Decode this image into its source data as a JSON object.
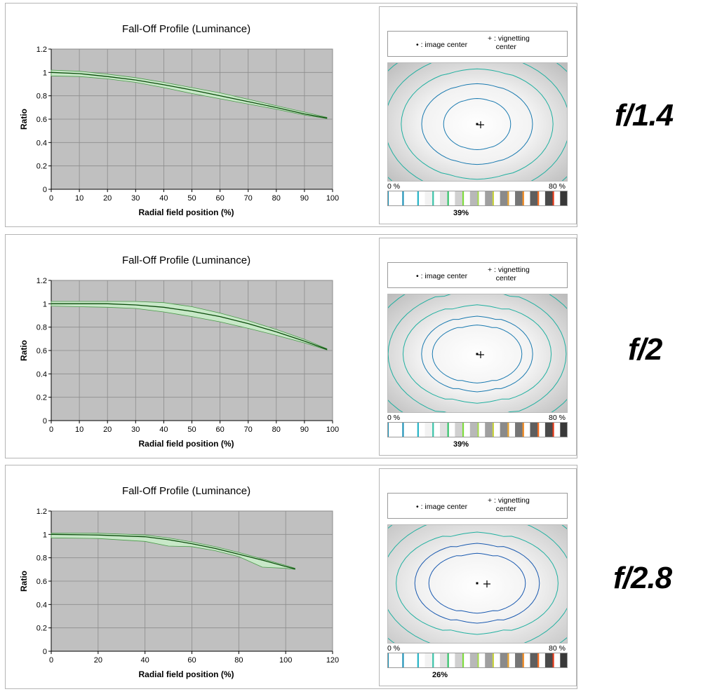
{
  "legend": {
    "image_center": "• : image center",
    "vignetting_line1": "+ : vignetting",
    "vignetting_line2": "center"
  },
  "scale": {
    "min_label": "0 %",
    "max_label": "80 %"
  },
  "scale_colors": [
    "#1a8fb5",
    "#ffffff",
    "#1a8fb5",
    "#ffffff",
    "#27b4c6",
    "#f2f2f2",
    "#3cc3a9",
    "#e0e0e0",
    "#36c26c",
    "#d0d0d0",
    "#7ddc3a",
    "#b8b8b8",
    "#a4d84d",
    "#a0a0a0",
    "#c9d43c",
    "#8a8a8a",
    "#e0a030",
    "#767676",
    "#f08a20",
    "#5e5e5e",
    "#f06a20",
    "#4a4a4a",
    "#e83a18",
    "#383838"
  ],
  "panels": [
    {
      "aperture": "f/1.4",
      "vignetting_percent": "39%",
      "map_colors": {
        "outer": "#bdbdbd",
        "inner": "#ffffff",
        "contour": "#20b0a0",
        "contour_inner": "#1a7ab0"
      },
      "chart_data": {
        "type": "area",
        "title": "Fall-Off Profile (Luminance)",
        "xlabel": "Radial field position (%)",
        "ylabel": "Ratio",
        "xlim": [
          0,
          100
        ],
        "ylim": [
          0,
          1.2
        ],
        "xticks": [
          "0",
          "10",
          "20",
          "30",
          "40",
          "50",
          "60",
          "70",
          "80",
          "90",
          "100"
        ],
        "yticks": [
          "0",
          "0.2",
          "0.4",
          "0.6",
          "0.8",
          "1",
          "1.2"
        ],
        "grid": true,
        "colors": {
          "plot_bg": "#c0c0c0",
          "band": "#c8e8c8",
          "band_edge": "#4a9a4a",
          "line": "#0a4a0a"
        },
        "series": [
          {
            "role": "mean",
            "x": [
              0,
              10,
              20,
              30,
              40,
              50,
              60,
              70,
              80,
              90,
              98
            ],
            "y": [
              1.0,
              0.99,
              0.965,
              0.935,
              0.895,
              0.85,
              0.8,
              0.75,
              0.7,
              0.645,
              0.61
            ]
          },
          {
            "role": "upper",
            "x": [
              0,
              10,
              20,
              30,
              40,
              50,
              60,
              70,
              80,
              90,
              98
            ],
            "y": [
              1.02,
              1.01,
              0.985,
              0.955,
              0.915,
              0.87,
              0.825,
              0.77,
              0.715,
              0.66,
              0.615
            ]
          },
          {
            "role": "lower",
            "x": [
              0,
              10,
              20,
              30,
              40,
              50,
              60,
              70,
              80,
              90,
              98
            ],
            "y": [
              0.97,
              0.965,
              0.945,
              0.915,
              0.87,
              0.82,
              0.775,
              0.73,
              0.685,
              0.635,
              0.605
            ]
          }
        ]
      }
    },
    {
      "aperture": "f/2",
      "vignetting_percent": "39%",
      "map_colors": {
        "outer": "#bdbdbd",
        "inner": "#ffffff",
        "contour": "#20b0a0",
        "contour_inner": "#1a7ab0"
      },
      "chart_data": {
        "type": "area",
        "title": "Fall-Off Profile (Luminance)",
        "xlabel": "Radial field position (%)",
        "ylabel": "Ratio",
        "xlim": [
          0,
          100
        ],
        "ylim": [
          0,
          1.2
        ],
        "xticks": [
          "0",
          "10",
          "20",
          "30",
          "40",
          "50",
          "60",
          "70",
          "80",
          "90",
          "100"
        ],
        "yticks": [
          "0",
          "0.2",
          "0.4",
          "0.6",
          "0.8",
          "1",
          "1.2"
        ],
        "grid": true,
        "colors": {
          "plot_bg": "#c0c0c0",
          "band": "#c8e8c8",
          "band_edge": "#4a9a4a",
          "line": "#0a4a0a"
        },
        "series": [
          {
            "role": "mean",
            "x": [
              0,
              10,
              20,
              30,
              40,
              50,
              60,
              70,
              80,
              90,
              98
            ],
            "y": [
              1.0,
              1.0,
              1.0,
              0.99,
              0.97,
              0.935,
              0.89,
              0.83,
              0.76,
              0.68,
              0.61
            ]
          },
          {
            "role": "upper",
            "x": [
              0,
              10,
              20,
              30,
              40,
              50,
              60,
              70,
              80,
              90,
              98
            ],
            "y": [
              1.02,
              1.02,
              1.02,
              1.02,
              1.01,
              0.975,
              0.92,
              0.855,
              0.78,
              0.695,
              0.615
            ]
          },
          {
            "role": "lower",
            "x": [
              0,
              10,
              20,
              30,
              40,
              50,
              60,
              70,
              80,
              90,
              98
            ],
            "y": [
              0.98,
              0.975,
              0.97,
              0.96,
              0.93,
              0.89,
              0.845,
              0.79,
              0.73,
              0.665,
              0.605
            ]
          }
        ]
      }
    },
    {
      "aperture": "f/2.8",
      "vignetting_percent": "26%",
      "map_colors": {
        "outer": "#c8c8c8",
        "inner": "#ffffff",
        "contour": "#20b0a0",
        "contour_inner": "#1a5ab0"
      },
      "chart_data": {
        "type": "area",
        "title": "Fall-Off Profile (Luminance)",
        "xlabel": "Radial field position (%)",
        "ylabel": "Ratio",
        "xlim": [
          0,
          120
        ],
        "ylim": [
          0,
          1.2
        ],
        "xticks": [
          "0",
          "20",
          "40",
          "60",
          "80",
          "100",
          "120"
        ],
        "yticks": [
          "0",
          "0.2",
          "0.4",
          "0.6",
          "0.8",
          "1",
          "1.2"
        ],
        "grid": true,
        "colors": {
          "plot_bg": "#c0c0c0",
          "band": "#c8e8c8",
          "band_edge": "#4a9a4a",
          "line": "#0a4a0a"
        },
        "series": [
          {
            "role": "mean",
            "x": [
              0,
              20,
              40,
              50,
              60,
              70,
              80,
              90,
              100,
              104
            ],
            "y": [
              1.0,
              0.995,
              0.98,
              0.955,
              0.92,
              0.88,
              0.83,
              0.78,
              0.725,
              0.705
            ]
          },
          {
            "role": "upper",
            "x": [
              0,
              20,
              40,
              50,
              60,
              70,
              80,
              90,
              100,
              104
            ],
            "y": [
              1.01,
              1.01,
              0.995,
              0.97,
              0.935,
              0.895,
              0.845,
              0.79,
              0.735,
              0.71
            ]
          },
          {
            "role": "lower",
            "x": [
              0,
              20,
              40,
              50,
              60,
              70,
              80,
              90,
              100,
              104
            ],
            "y": [
              0.97,
              0.965,
              0.94,
              0.9,
              0.895,
              0.86,
              0.81,
              0.72,
              0.71,
              0.7
            ]
          }
        ]
      }
    }
  ]
}
